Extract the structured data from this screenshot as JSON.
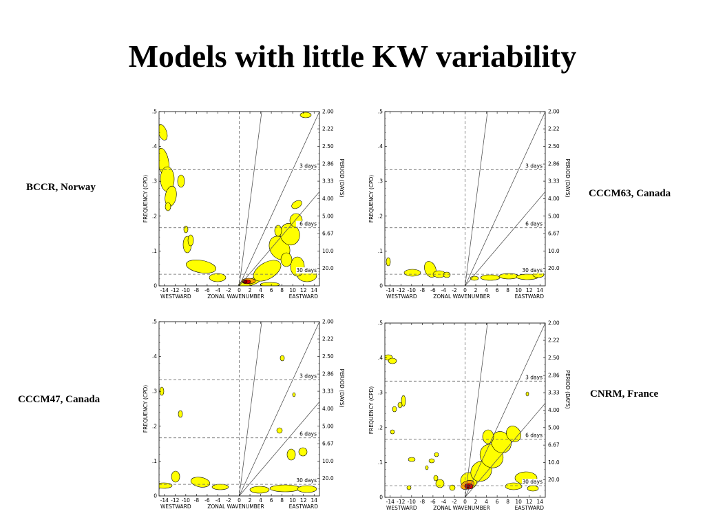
{
  "slide": {
    "title": "Models with little KW variability"
  },
  "panels": [
    {
      "label": "BCCR, Norway"
    },
    {
      "label": "CCCM63, Canada"
    },
    {
      "label": "CCCM47, Canada"
    },
    {
      "label": "CNRM, France"
    }
  ],
  "axes": {
    "ylabel": "FREQUENCY (CPD)",
    "y2label": "PERIOD (DAYS)",
    "xlabel": "ZONAL WAVENUMBER",
    "westward": "WESTWARD",
    "eastward": "EASTWARD",
    "yticks": [
      "0",
      ".1",
      ".2",
      ".3",
      ".4",
      ".5"
    ],
    "xticks": [
      "-14",
      "-12",
      "-10",
      "-8",
      "-6",
      "-4",
      "-2",
      "0",
      "2",
      "4",
      "6",
      "8",
      "10",
      "12",
      "14"
    ],
    "period_ticks": [
      "2.00",
      "2.22",
      "2.50",
      "2.86",
      "3.33",
      "4.00",
      "5.00",
      "6.67",
      "10.0",
      "20.0"
    ],
    "day_lines": [
      "3 days",
      "6 days",
      "30 days"
    ]
  },
  "colors": {
    "fill_yellow": "#ffff00",
    "fill_orange": "#ffa500",
    "fill_red": "#e00000",
    "fill_darkred": "#8b0000"
  }
}
